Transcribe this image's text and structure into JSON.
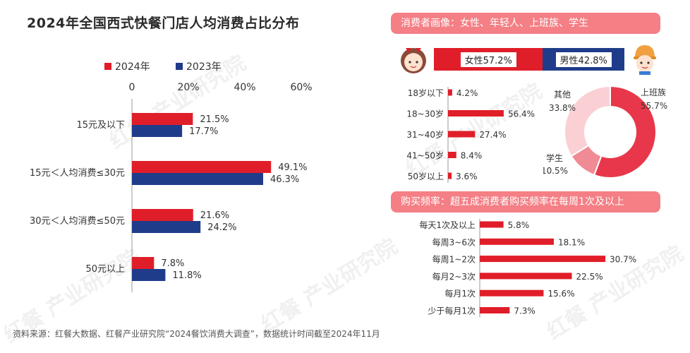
{
  "title": "2024年全国西式快餐门店人均消费占比分布",
  "footer": "资料来源：红餐大数据、红餐产业研究院“2024餐饮消费大调查”，数据统计时间截至2024年11月",
  "watermark": "红餐 产业研究院",
  "colors": {
    "red": "#e01e29",
    "blue": "#1f3c8a",
    "pink": "#f47f85"
  },
  "gender": {
    "title": "消费者画像：女性、年轻人、上班族、学生",
    "female_label": "女性57.2%",
    "male_label": "男性42.8%",
    "female_share": 57.2,
    "female_icon": "girl-avatar-icon",
    "male_icon": "boy-avatar-icon"
  },
  "frequency_title": "购买频率：超五成消费者购买频率在每周1次及以上",
  "chart_data": [
    {
      "type": "bar",
      "orientation": "horizontal",
      "categories": [
        "15元及以下",
        "15元＜人均消费≤30元",
        "30元＜人均消费≤50元",
        "50元以上"
      ],
      "series": [
        {
          "name": "2024年",
          "values": [
            21.5,
            49.1,
            21.6,
            7.8
          ],
          "labels": [
            "21.5%",
            "49.1%",
            "21.6%",
            "7.8%"
          ],
          "color": "#e01e29"
        },
        {
          "name": "2023年",
          "values": [
            17.7,
            46.3,
            24.2,
            11.8
          ],
          "labels": [
            "17.7%",
            "46.3%",
            "24.2%",
            "11.8%"
          ],
          "color": "#1f3c8a"
        }
      ],
      "xlim": [
        0,
        60
      ],
      "xticks": [
        "0",
        "20%",
        "40%",
        "60%"
      ],
      "legend": "top"
    },
    {
      "type": "bar",
      "orientation": "horizontal",
      "categories": [
        "18岁以下",
        "18~30岁",
        "31~40岁",
        "41~50岁",
        "50岁以上"
      ],
      "values": [
        4.2,
        56.4,
        27.4,
        8.4,
        3.6
      ],
      "labels": [
        "4.2%",
        "56.4%",
        "27.4%",
        "8.4%",
        "3.6%"
      ],
      "color": "#e01e29"
    },
    {
      "type": "pie",
      "donut": true,
      "slices": [
        {
          "name": "上班族",
          "value": 55.7,
          "label": "55.7%",
          "color": "#e8374a"
        },
        {
          "name": "学生",
          "value": 10.5,
          "label": "10.5%",
          "color": "#f08a95"
        },
        {
          "name": "其他",
          "value": 33.8,
          "label": "33.8%",
          "color": "#fad0d5"
        }
      ]
    },
    {
      "type": "bar",
      "orientation": "horizontal",
      "categories": [
        "每天1次及以上",
        "每周3~6次",
        "每周1~2次",
        "每月2~3次",
        "每月1次",
        "少于每月1次"
      ],
      "values": [
        5.8,
        18.1,
        30.7,
        22.5,
        15.6,
        7.3
      ],
      "labels": [
        "5.8%",
        "18.1%",
        "30.7%",
        "22.5%",
        "15.6%",
        "7.3%"
      ],
      "color": "#e01e29"
    }
  ]
}
